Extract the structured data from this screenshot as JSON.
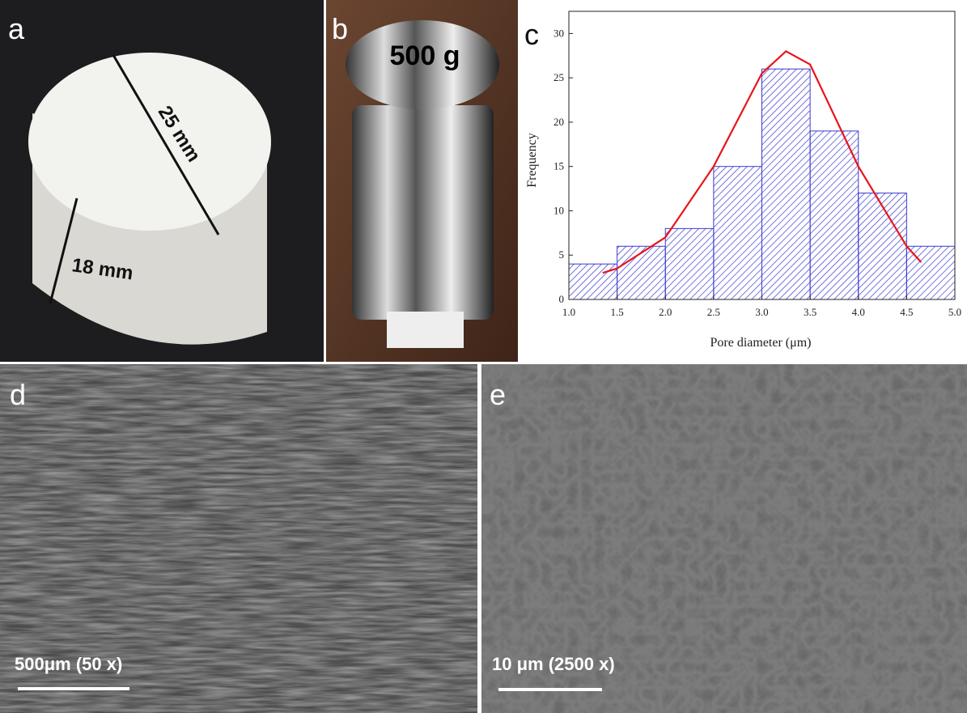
{
  "panels": {
    "a": {
      "label": "a",
      "width_label": "25 mm",
      "height_label": "18 mm"
    },
    "b": {
      "label": "b",
      "weight_label": "500 g"
    },
    "c": {
      "label": "c"
    },
    "d": {
      "label": "d",
      "scale_label": "500μm (50 x)"
    },
    "e": {
      "label": "e",
      "scale_label": "10 μm (2500 x)"
    }
  },
  "chart_data": {
    "type": "histogram",
    "xlabel": "Pore diameter (μm)",
    "ylabel": "Frequency",
    "bins": [
      1.0,
      1.5,
      2.0,
      2.5,
      3.0,
      3.5,
      4.0,
      4.5,
      5.0
    ],
    "counts": [
      4,
      6,
      8,
      15,
      26,
      19,
      12,
      6
    ],
    "color": "#3a3ad0",
    "fit": {
      "color": "#e8141b",
      "x": [
        1.35,
        1.5,
        2.0,
        2.5,
        3.0,
        3.25,
        3.5,
        4.0,
        4.5,
        4.65
      ],
      "values": [
        3,
        3.5,
        7,
        15,
        25.5,
        28,
        26.5,
        15,
        6,
        4.2
      ]
    },
    "xlim": [
      1,
      5
    ],
    "ylim": [
      0,
      32.5
    ],
    "xticks": [
      {
        "value": 1,
        "label": "1.0"
      },
      {
        "value": 1.5,
        "label": "1.5"
      },
      {
        "value": 2,
        "label": "2.0"
      },
      {
        "value": 2.5,
        "label": "2.5"
      },
      {
        "value": 3,
        "label": "3.0"
      },
      {
        "value": 3.5,
        "label": "3.5"
      },
      {
        "value": 4,
        "label": "4.0"
      },
      {
        "value": 4.5,
        "label": "4.5"
      },
      {
        "value": 5,
        "label": "5.0"
      }
    ],
    "yticks": [
      0,
      5,
      10,
      15,
      20,
      25,
      30
    ]
  }
}
